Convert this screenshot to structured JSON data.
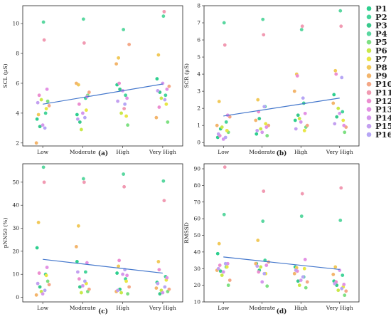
{
  "colors": {
    "P1": "#2ecf8f",
    "P2": "#45d49a",
    "P3": "#38c98c",
    "P4": "#5ad7a0",
    "P5": "#7ee082",
    "P6": "#c9e84a",
    "P7": "#e8e645",
    "P8": "#f1c95a",
    "P9": "#f3b56c",
    "P10": "#f4a786",
    "P11": "#f19ab2",
    "P12": "#ec8ed0",
    "P13": "#e391e4",
    "P14": "#d497ec",
    "P15": "#c3a0f0",
    "P16": "#b6a6f5",
    "trend": "#4477cc",
    "frame": "#222222"
  },
  "legend": [
    "P1",
    "P2",
    "P3",
    "P4",
    "P5",
    "P6",
    "P7",
    "P8",
    "P9",
    "P10",
    "P11",
    "P12",
    "P13",
    "P14",
    "P15",
    "P16"
  ],
  "chart_data": [
    {
      "type": "scatter",
      "panel": "(a)",
      "ylabel": "SCL (μS)",
      "categories": [
        "Low",
        "Moderate",
        "High",
        "Very High"
      ],
      "ylim": [
        1.8,
        11.2
      ],
      "yticks": [
        2,
        4,
        6,
        8,
        10
      ],
      "trend": [
        4.6,
        5.05,
        5.5,
        5.95
      ],
      "points": [
        [
          3.6,
          4.0,
          3.1,
          10.1,
          4.8,
          4.9,
          4.3,
          3.9,
          2.0,
          4.5,
          8.9,
          5.2,
          5.6,
          3.2,
          4.7,
          3.0
        ],
        [
          3.9,
          5.0,
          3.4,
          10.3,
          5.2,
          2.9,
          4.2,
          5.9,
          6.0,
          5.4,
          8.7,
          4.6,
          5.1,
          4.0,
          3.6,
          3.7
        ],
        [
          5.9,
          5.2,
          5.6,
          9.6,
          3.2,
          4.0,
          3.8,
          7.7,
          7.3,
          8.6,
          4.3,
          6.0,
          5.0,
          5.5,
          4.8,
          4.6
        ],
        [
          6.3,
          5.2,
          5.4,
          10.5,
          3.4,
          5.0,
          4.6,
          7.9,
          3.7,
          5.8,
          10.8,
          4.4,
          5.6,
          6.0,
          5.5,
          4.9
        ]
      ]
    },
    {
      "type": "scatter",
      "panel": "(b)",
      "ylabel": "SCR (μS)",
      "categories": [
        "Low",
        "Moderate",
        "High",
        "Very High"
      ],
      "ylim": [
        -0.2,
        8.0
      ],
      "yticks": [
        0,
        1,
        2,
        3,
        4,
        5,
        6,
        7,
        8
      ],
      "trend": [
        1.55,
        1.9,
        2.25,
        2.6
      ],
      "points": [
        [
          0.3,
          1.2,
          0.8,
          7.0,
          0.6,
          0.9,
          0.7,
          2.4,
          1.0,
          1.5,
          5.7,
          0.4,
          1.6,
          0.2,
          0.5,
          0.3
        ],
        [
          0.5,
          2.1,
          1.4,
          7.2,
          0.4,
          0.8,
          1.1,
          2.5,
          1.3,
          1.0,
          6.3,
          1.8,
          0.9,
          0.6,
          0.7,
          2.1
        ],
        [
          1.3,
          2.3,
          1.6,
          6.6,
          0.9,
          1.4,
          0.7,
          4.0,
          3.0,
          1.0,
          6.8,
          3.9,
          1.7,
          1.2,
          0.8,
          2.6
        ],
        [
          2.8,
          1.8,
          1.5,
          7.7,
          0.6,
          2.0,
          1.3,
          4.2,
          2.3,
          0.9,
          6.8,
          4.0,
          1.0,
          1.7,
          1.1,
          3.8
        ]
      ]
    },
    {
      "type": "scatter",
      "panel": "(c)",
      "ylabel": "pNN50 (%)",
      "categories": [
        "Low",
        "Moderate",
        "High",
        "Very High"
      ],
      "ylim": [
        -2,
        58
      ],
      "yticks": [
        0,
        10,
        20,
        30,
        40,
        50
      ],
      "trend": [
        16.5,
        14.5,
        12.5,
        10.5
      ],
      "points": [
        [
          21.5,
          10.0,
          4.5,
          56.5,
          7.0,
          2.5,
          9.5,
          32.5,
          1.0,
          5.5,
          50.0,
          10.5,
          13.0,
          1.5,
          6.0,
          3.0
        ],
        [
          15.5,
          11.0,
          4.5,
          51.5,
          2.5,
          2.0,
          6.0,
          31.0,
          22.0,
          3.5,
          50.0,
          8.0,
          15.0,
          5.0,
          11.0,
          7.0
        ],
        [
          10.5,
          8.0,
          3.5,
          53.5,
          1.5,
          2.0,
          7.0,
          13.5,
          2.5,
          4.5,
          48.0,
          16.0,
          9.5,
          10.0,
          3.0,
          12.0
        ],
        [
          6.5,
          9.0,
          1.5,
          50.5,
          2.5,
          3.0,
          7.5,
          15.5,
          4.0,
          3.5,
          42.0,
          12.0,
          8.5,
          2.0,
          6.0,
          4.5
        ]
      ]
    },
    {
      "type": "scatter",
      "panel": "(d)",
      "ylabel": "RMSSD",
      "categories": [
        "Low",
        "Moderate",
        "High",
        "Very High"
      ],
      "ylim": [
        10,
        93
      ],
      "yticks": [
        10,
        20,
        30,
        40,
        50,
        60,
        70,
        80,
        90
      ],
      "trend": [
        37.0,
        34.5,
        32.0,
        29.5
      ],
      "points": [
        [
          39.0,
          31.0,
          28.5,
          62.5,
          20.0,
          26.0,
          31.0,
          45.0,
          29.0,
          23.0,
          91.0,
          32.0,
          33.0,
          28.0,
          30.0,
          33.0
        ],
        [
          33.0,
          35.0,
          29.0,
          58.5,
          19.5,
          31.0,
          27.0,
          47.0,
          33.0,
          34.0,
          76.5,
          28.0,
          32.0,
          22.0,
          31.5,
          27.0
        ],
        [
          31.0,
          25.0,
          22.5,
          61.5,
          18.5,
          20.0,
          30.0,
          30.5,
          27.0,
          22.0,
          75.0,
          28.5,
          35.5,
          23.0,
          29.0,
          25.0
        ],
        [
          22.5,
          26.0,
          20.0,
          59.0,
          14.0,
          17.0,
          19.0,
          31.0,
          26.5,
          16.5,
          78.5,
          22.0,
          20.5,
          29.0,
          21.0,
          18.0
        ]
      ]
    }
  ]
}
